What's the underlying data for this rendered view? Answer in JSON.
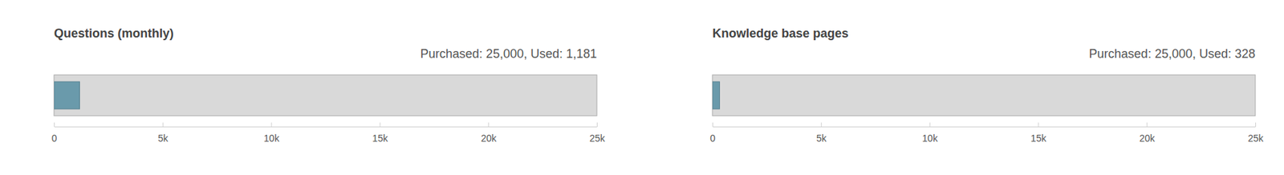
{
  "chart_data": [
    {
      "type": "bar",
      "orientation": "horizontal",
      "title": "Questions (monthly)",
      "subtitle": "Purchased: 25,000, Used: 1,181",
      "categories": [
        null
      ],
      "values": [
        1181
      ],
      "color": "#6a9aab",
      "xlim": [
        0,
        25000
      ],
      "xticks": [
        0,
        {
          "value": 5000,
          "label": "5k"
        },
        {
          "value": 10000,
          "label": "10k"
        },
        {
          "value": 15000,
          "label": "15k"
        },
        {
          "value": 20000,
          "label": "20k"
        },
        {
          "value": 25000,
          "label": "25k"
        }
      ],
      "tick_labels": "x",
      "grid": false
    },
    {
      "type": "bar",
      "orientation": "horizontal",
      "title": "Knowledge base pages",
      "subtitle": "Purchased: 25,000, Used: 328",
      "categories": [
        null
      ],
      "values": [
        328
      ],
      "color": "#6a9aab",
      "xlim": [
        0,
        25000
      ],
      "xticks": [
        0,
        {
          "value": 5000,
          "label": "5k"
        },
        {
          "value": 10000,
          "label": "10k"
        },
        {
          "value": 15000,
          "label": "15k"
        },
        {
          "value": 20000,
          "label": "20k"
        },
        {
          "value": 25000,
          "label": "25k"
        }
      ],
      "tick_labels": "x",
      "grid": false
    }
  ]
}
